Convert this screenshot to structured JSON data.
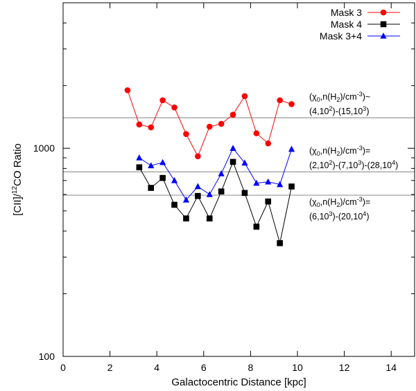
{
  "chart_data": {
    "type": "line",
    "title": "",
    "xlabel": "Galactocentric Distance [kpc]",
    "ylabel_parts": [
      "[CII]/",
      "12",
      "CO Ratio"
    ],
    "xlim": [
      0,
      15
    ],
    "ylim": [
      100,
      5000
    ],
    "yscale": "log",
    "x_ticks": [
      0,
      2,
      4,
      6,
      8,
      10,
      12,
      14
    ],
    "x_tick_labels": [
      "0",
      "2",
      "4",
      "6",
      "8",
      "10",
      "12",
      "14"
    ],
    "y_major_ticks": [
      100,
      1000
    ],
    "y_tick_labels": [
      "100",
      "1000"
    ],
    "y_minor_ticks": [
      200,
      300,
      400,
      500,
      600,
      700,
      800,
      900,
      2000,
      3000,
      4000
    ],
    "legend_position": "top-right",
    "series": [
      {
        "name": "Mask 3",
        "color": "#ff0000",
        "marker": "circle",
        "x": [
          2.75,
          3.25,
          3.75,
          4.25,
          4.75,
          5.25,
          5.75,
          6.25,
          6.75,
          7.25,
          7.75,
          8.25,
          8.75,
          9.25,
          9.75
        ],
        "values": [
          1900,
          1300,
          1260,
          1700,
          1570,
          1170,
          915,
          1270,
          1310,
          1450,
          1780,
          1180,
          1055,
          1700,
          1630
        ]
      },
      {
        "name": "Mask 4",
        "color": "#000000",
        "marker": "square",
        "x": [
          3.25,
          3.75,
          4.25,
          4.75,
          5.25,
          5.75,
          6.25,
          6.75,
          7.25,
          7.75,
          8.25,
          8.75,
          9.25,
          9.75
        ],
        "values": [
          810,
          645,
          720,
          535,
          460,
          590,
          460,
          620,
          860,
          610,
          420,
          555,
          350,
          655
        ]
      },
      {
        "name": "Mask 3+4",
        "color": "#0000ff",
        "marker": "triangle",
        "x": [
          3.25,
          3.75,
          4.25,
          4.75,
          5.25,
          5.75,
          6.25,
          6.75,
          7.25,
          7.75,
          8.25,
          8.75,
          9.25,
          9.75
        ],
        "values": [
          900,
          825,
          855,
          700,
          565,
          655,
          600,
          755,
          1000,
          850,
          680,
          690,
          670,
          990
        ]
      }
    ],
    "reference_lines": [
      {
        "y": 1400,
        "color": "#999999",
        "label_line1": "(χ",
        "label_sub1": "0",
        "label_mid1": ",n(H",
        "label_sub2": "2",
        "label_end1": ")/cm",
        "label_sup1": "-3",
        "label_tail1": ")~",
        "label_line2": "(4,10",
        "label_sup2a": "2",
        "label_mid2": ")-(15,10",
        "label_sup2b": "3",
        "label_end2": ")"
      },
      {
        "y": 770,
        "color": "#999999",
        "label_line1": "(χ",
        "label_sub1": "0",
        "label_mid1": ",n(H",
        "label_sub2": "2",
        "label_end1": ")/cm",
        "label_sup1": "-3",
        "label_tail1": ")=",
        "label_line2": "(2,10",
        "label_sup2a": "2",
        "label_mid2": ")-(7,10",
        "label_sup2b": "3",
        "label_end2": ")-(28,10",
        "label_sup2c": "4",
        "label_end3": ")"
      },
      {
        "y": 595,
        "color": "#999999",
        "label_line1": "(χ",
        "label_sub1": "0",
        "label_mid1": ",n(H",
        "label_sub2": "2",
        "label_end1": ")/cm",
        "label_sup1": "-3",
        "label_tail1": ")=",
        "label_line2": "(6,10",
        "label_sup2a": "3",
        "label_mid2": ")-(20,10",
        "label_sup2b": "4",
        "label_end2": ")"
      }
    ]
  }
}
